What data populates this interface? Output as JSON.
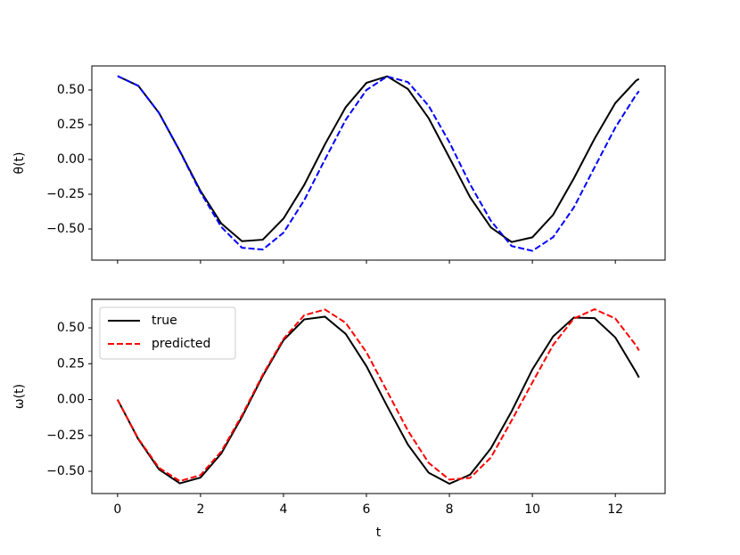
{
  "chart_data": [
    {
      "type": "line",
      "y_label": "θ(t)",
      "x": [
        0,
        0.5,
        1,
        1.5,
        2,
        2.5,
        3,
        3.5,
        4,
        4.5,
        5,
        5.5,
        6,
        6.5,
        7,
        7.5,
        8,
        8.5,
        9,
        9.5,
        10,
        10.5,
        11,
        11.5,
        12,
        12.5,
        12.57
      ],
      "series": [
        {
          "color": "#000000",
          "linestyle": "solid",
          "values": [
            0.6,
            0.53,
            0.335,
            0.062,
            -0.226,
            -0.46,
            -0.588,
            -0.577,
            -0.425,
            -0.183,
            0.109,
            0.376,
            0.551,
            0.598,
            0.507,
            0.297,
            0.013,
            -0.272,
            -0.489,
            -0.594,
            -0.56,
            -0.398,
            -0.136,
            0.15,
            0.406,
            0.567,
            0.579
          ]
        },
        {
          "color": "#0000ff",
          "linestyle": "dashed",
          "values": [
            0.6,
            0.53,
            0.335,
            0.059,
            -0.236,
            -0.485,
            -0.635,
            -0.648,
            -0.527,
            -0.293,
            0.0,
            0.285,
            0.5,
            0.597,
            0.557,
            0.386,
            0.124,
            -0.179,
            -0.441,
            -0.623,
            -0.657,
            -0.559,
            -0.345,
            -0.056,
            0.23,
            0.465,
            0.491
          ]
        }
      ],
      "xlim": [
        -0.62,
        13.2
      ],
      "xticks": [
        0,
        2,
        4,
        6,
        8,
        10,
        12
      ],
      "ylim": [
        -0.724,
        0.673
      ],
      "yticks": [
        {
          "value": -0.5,
          "label": "−0.50"
        },
        {
          "value": -0.25,
          "label": "−0.25"
        },
        {
          "value": 0,
          "label": "0.00"
        },
        {
          "value": 0.25,
          "label": "0.25"
        },
        {
          "value": 0.5,
          "label": "0.50"
        }
      ],
      "show_xtick_labels": false
    },
    {
      "type": "line",
      "y_label": "ω(t)",
      "x_label": "t",
      "x": [
        0,
        0.5,
        1,
        1.5,
        2,
        2.5,
        3,
        3.5,
        4,
        4.5,
        5,
        5.5,
        6,
        6.5,
        7,
        7.5,
        8,
        8.5,
        9,
        9.5,
        10,
        10.5,
        11,
        11.5,
        12,
        12.5,
        12.57
      ],
      "series": [
        {
          "name": "true",
          "color": "#000000",
          "linestyle": "solid",
          "values": [
            0,
            -0.276,
            -0.487,
            -0.584,
            -0.544,
            -0.376,
            -0.12,
            0.164,
            0.414,
            0.559,
            0.578,
            0.458,
            0.233,
            -0.046,
            -0.314,
            -0.51,
            -0.587,
            -0.523,
            -0.34,
            -0.082,
            0.21,
            0.44,
            0.572,
            0.568,
            0.433,
            0.191,
            0.154
          ]
        },
        {
          "name": "predicted",
          "color": "#ff0000",
          "linestyle": "dashed",
          "values": [
            0,
            -0.272,
            -0.476,
            -0.568,
            -0.527,
            -0.362,
            -0.109,
            0.173,
            0.423,
            0.588,
            0.628,
            0.535,
            0.33,
            0.057,
            -0.217,
            -0.441,
            -0.558,
            -0.546,
            -0.404,
            -0.146,
            0.119,
            0.381,
            0.565,
            0.63,
            0.565,
            0.377,
            0.342
          ]
        }
      ],
      "xlim": [
        -0.62,
        13.2
      ],
      "xticks": [
        0,
        2,
        4,
        6,
        8,
        10,
        12
      ],
      "ylim": [
        -0.655,
        0.699
      ],
      "yticks": [
        {
          "value": -0.5,
          "label": "−0.50"
        },
        {
          "value": -0.25,
          "label": "−0.25"
        },
        {
          "value": 0,
          "label": "0.00"
        },
        {
          "value": 0.25,
          "label": "0.25"
        },
        {
          "value": 0.5,
          "label": "0.50"
        }
      ],
      "show_xtick_labels": true,
      "legend": "upper left"
    }
  ]
}
